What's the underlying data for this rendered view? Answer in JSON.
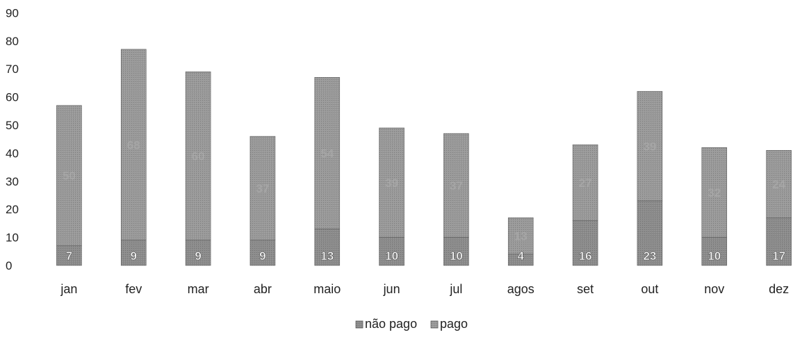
{
  "chart_data": {
    "type": "bar",
    "stacked": true,
    "categories": [
      "jan",
      "fev",
      "mar",
      "abr",
      "maio",
      "jun",
      "jul",
      "agos",
      "set",
      "out",
      "nov",
      "dez"
    ],
    "series": [
      {
        "name": "não pago",
        "values": [
          7,
          9,
          9,
          9,
          13,
          10,
          10,
          4,
          16,
          23,
          10,
          17
        ],
        "data_labels": [
          "7",
          "9",
          "9",
          "9",
          "13",
          "10",
          "10",
          "4",
          "16",
          "23",
          "10",
          "17"
        ]
      },
      {
        "name": "pago",
        "values": [
          50,
          68,
          60,
          37,
          54,
          39,
          37,
          13,
          27,
          39,
          32,
          24
        ],
        "data_labels": [
          "50",
          "68",
          "60",
          "37",
          "54",
          "39",
          "37",
          "13",
          "27",
          "39",
          "32",
          "24"
        ]
      }
    ],
    "ylim": [
      0,
      90
    ],
    "yticks": [
      "0",
      "10",
      "20",
      "30",
      "40",
      "50",
      "60",
      "70",
      "80",
      "90"
    ],
    "grid": false,
    "legend": "bottom-center",
    "colors": {
      "não pago": "#8c8c8c",
      "pago": "#9a9a9a",
      "label_bottom": "#ffffff",
      "label_top": "#b0b0b0"
    }
  }
}
